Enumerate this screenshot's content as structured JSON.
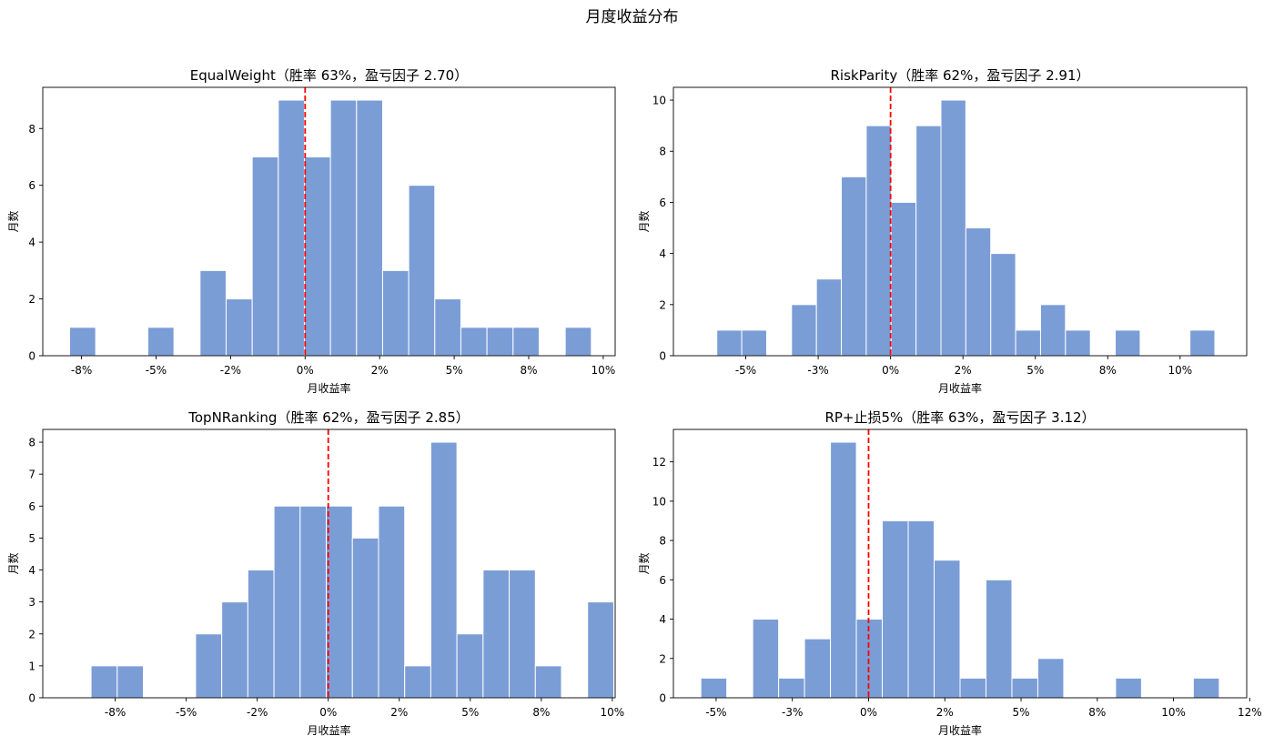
{
  "figure": {
    "title": "月度收益分布",
    "bar_color": "#7b9dd6",
    "bar_edge": "#ffffff",
    "zero_line_color": "#ff0000",
    "ylabel": "月数",
    "xlabel": "月收益率"
  },
  "chart_data": [
    {
      "type": "bar",
      "title": "EqualWeight（胜率 63%，盈亏因子 2.70）",
      "xlabel": "月收益率",
      "ylabel": "月数",
      "xlim": [
        -8.8,
        10.4
      ],
      "ylim": [
        0,
        9.45
      ],
      "xticks": [
        {
          "v": -7.5,
          "label": "-8%"
        },
        {
          "v": -5,
          "label": "-5%"
        },
        {
          "v": -2.5,
          "label": "-2%"
        },
        {
          "v": 0,
          "label": "0%"
        },
        {
          "v": 2.5,
          "label": "2%"
        },
        {
          "v": 5,
          "label": "5%"
        },
        {
          "v": 7.5,
          "label": "8%"
        },
        {
          "v": 10,
          "label": "10%"
        }
      ],
      "yticks": [
        0,
        2,
        4,
        6,
        8
      ],
      "bin_start": -7.9,
      "bin_width": 0.875,
      "counts": [
        1,
        0,
        0,
        1,
        0,
        3,
        2,
        7,
        9,
        7,
        9,
        9,
        3,
        6,
        2,
        1,
        1,
        1,
        0,
        1
      ],
      "zero_line": 0
    },
    {
      "type": "bar",
      "title": "RiskParity（胜率 62%，盈亏因子 2.91）",
      "xlabel": "月收益率",
      "ylabel": "月数",
      "xlim": [
        -7.5,
        12.3
      ],
      "ylim": [
        0,
        10.5
      ],
      "xticks": [
        {
          "v": -5,
          "label": "-5%"
        },
        {
          "v": -2.5,
          "label": "-3%"
        },
        {
          "v": 0,
          "label": "0%"
        },
        {
          "v": 2.5,
          "label": "2%"
        },
        {
          "v": 5,
          "label": "5%"
        },
        {
          "v": 7.5,
          "label": "8%"
        },
        {
          "v": 10,
          "label": "10%"
        }
      ],
      "yticks": [
        0,
        2,
        4,
        6,
        8,
        10
      ],
      "bin_start": -6.0,
      "bin_width": 0.86,
      "counts": [
        1,
        1,
        0,
        2,
        3,
        7,
        9,
        6,
        9,
        10,
        5,
        4,
        1,
        2,
        1,
        0,
        1,
        0,
        0,
        1
      ],
      "zero_line": 0
    },
    {
      "type": "bar",
      "title": "TopNRanking（胜率 62%，盈亏因子 2.85）",
      "xlabel": "月收益率",
      "ylabel": "月数",
      "xlim": [
        -10.05,
        10.1
      ],
      "ylim": [
        0,
        8.4
      ],
      "xticks": [
        {
          "v": -7.5,
          "label": "-8%"
        },
        {
          "v": -5,
          "label": "-5%"
        },
        {
          "v": -2.5,
          "label": "-2%"
        },
        {
          "v": 0,
          "label": "0%"
        },
        {
          "v": 2.5,
          "label": "2%"
        },
        {
          "v": 5,
          "label": "5%"
        },
        {
          "v": 7.5,
          "label": "8%"
        },
        {
          "v": 10,
          "label": "10%"
        }
      ],
      "yticks": [
        0,
        1,
        2,
        3,
        4,
        5,
        6,
        7,
        8
      ],
      "bin_start": -8.35,
      "bin_width": 0.92,
      "counts": [
        1,
        1,
        0,
        0,
        2,
        3,
        4,
        6,
        6,
        6,
        5,
        6,
        1,
        8,
        2,
        4,
        4,
        1,
        0,
        3
      ],
      "zero_line": 0
    },
    {
      "type": "bar",
      "title": "RP+止损5%（胜率 63%，盈亏因子 3.12）",
      "xlabel": "月收益率",
      "ylabel": "月数",
      "xlim": [
        -6.4,
        12.4
      ],
      "ylim": [
        0,
        13.65
      ],
      "xticks": [
        {
          "v": -5,
          "label": "-5%"
        },
        {
          "v": -2.5,
          "label": "-3%"
        },
        {
          "v": 0,
          "label": "0%"
        },
        {
          "v": 2.5,
          "label": "2%"
        },
        {
          "v": 5,
          "label": "5%"
        },
        {
          "v": 7.5,
          "label": "8%"
        },
        {
          "v": 10,
          "label": "10%"
        },
        {
          "v": 12.5,
          "label": "12%"
        }
      ],
      "yticks": [
        0,
        2,
        4,
        6,
        8,
        10,
        12
      ],
      "bin_start": -5.5,
      "bin_width": 0.85,
      "counts": [
        1,
        0,
        4,
        1,
        3,
        13,
        4,
        9,
        9,
        7,
        1,
        6,
        1,
        2,
        0,
        0,
        1,
        0,
        0,
        1
      ],
      "zero_line": 0
    }
  ]
}
